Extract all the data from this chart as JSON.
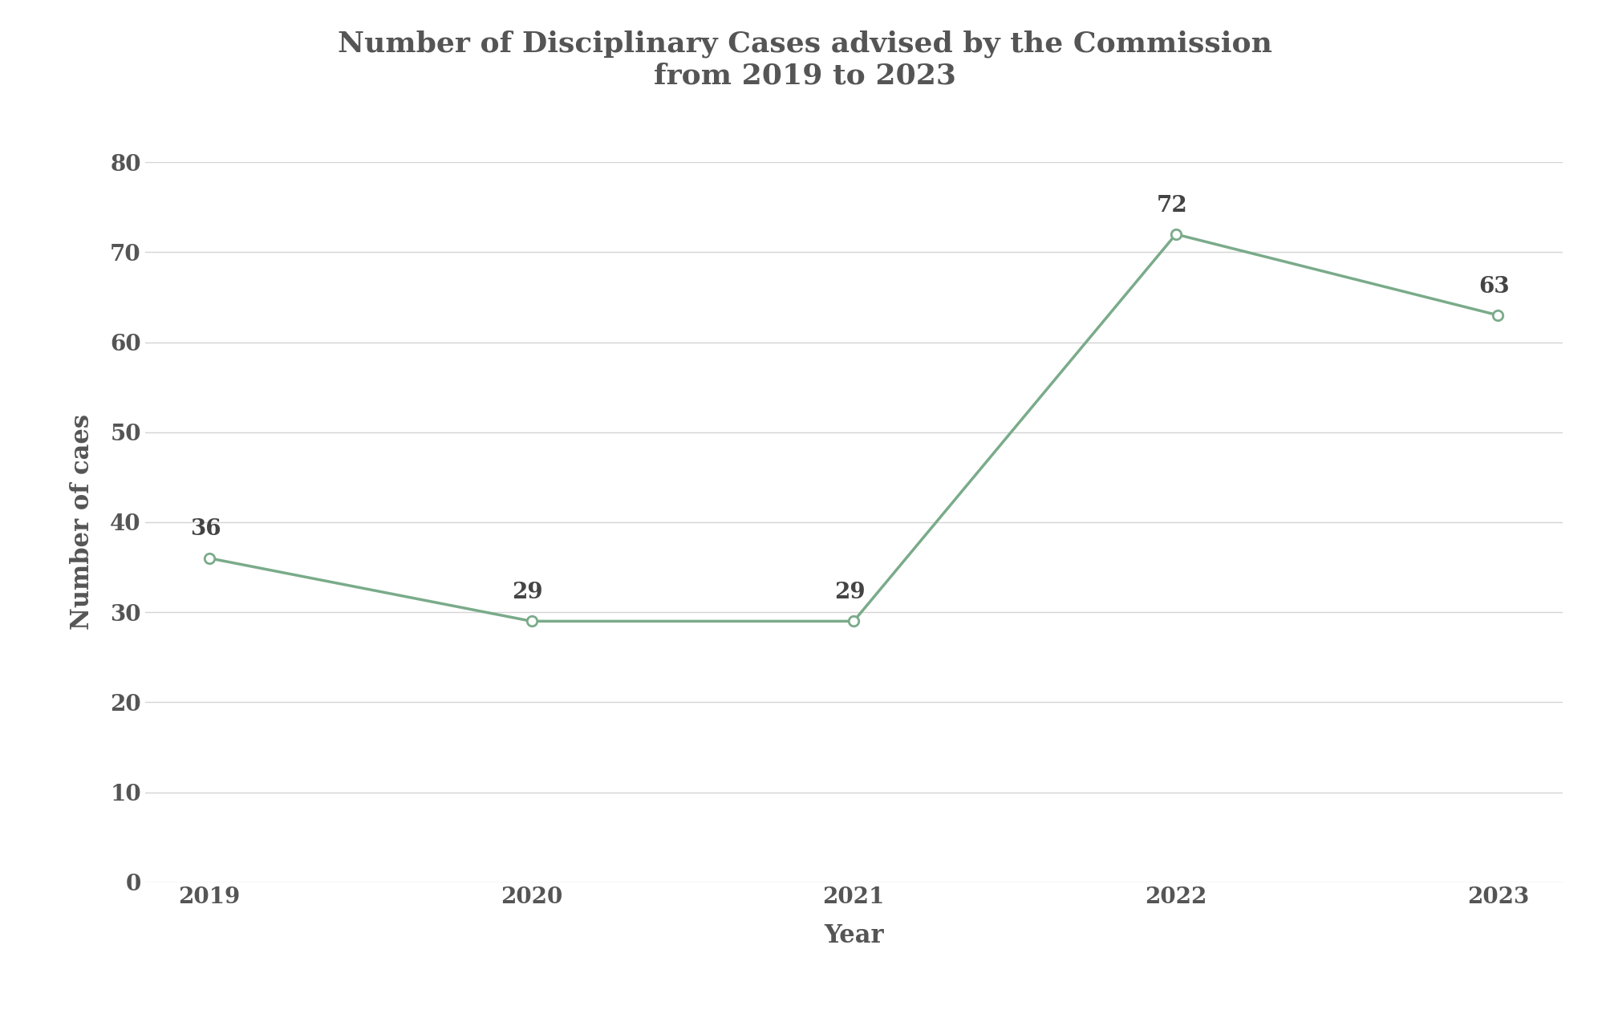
{
  "title_line1": "Number of Disciplinary Cases advised by the Commission",
  "title_line2": "from 2019 to 2023",
  "xlabel": "Year",
  "ylabel": "Number of caes",
  "years": [
    2019,
    2020,
    2021,
    2022,
    2023
  ],
  "values": [
    36,
    29,
    29,
    72,
    63
  ],
  "ylim": [
    0,
    80
  ],
  "yticks": [
    0,
    10,
    20,
    30,
    40,
    50,
    60,
    70,
    80
  ],
  "line_color": "#7aab8a",
  "marker_face_color": "#ffffff",
  "marker_edge_color": "#7aab8a",
  "background_color": "#ffffff",
  "grid_color": "#d4d4d4",
  "title_color": "#555555",
  "label_color": "#555555",
  "tick_color": "#555555",
  "annotation_color": "#444444",
  "title_fontsize": 26,
  "axis_label_fontsize": 22,
  "tick_fontsize": 20,
  "annotation_fontsize": 20,
  "line_width": 2.5,
  "marker_size": 9,
  "font_family": "Palatino Linotype"
}
